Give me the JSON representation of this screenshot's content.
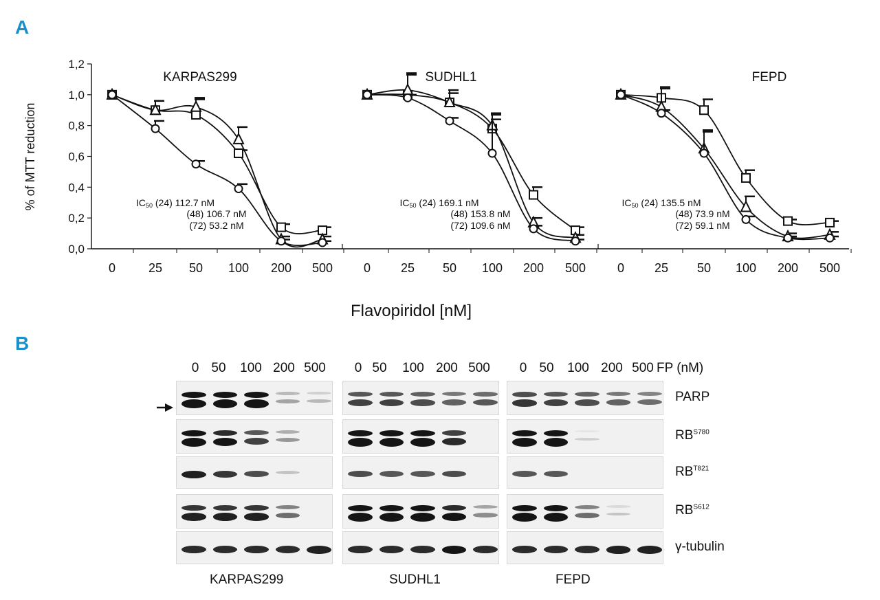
{
  "panel_labels": {
    "a": "A",
    "b": "B"
  },
  "colors": {
    "panel_letter": "#1b8fc9",
    "ink": "#111111",
    "blot_bg": "#f1f1f1",
    "band": "#151515"
  },
  "chart_data": [
    {
      "type": "line",
      "title": "KARPAS299",
      "categories": [
        "0",
        "25",
        "50",
        "100",
        "200",
        "500"
      ],
      "ylabel": "% of MTT reduction",
      "xlabel": "Flavopiridol [nM]",
      "yticks": [
        "0,0",
        "0,2",
        "0,4",
        "0,6",
        "0,8",
        "1,0",
        "1,2"
      ],
      "ylim": [
        0,
        1.2
      ],
      "series": [
        {
          "marker": "square",
          "values": [
            1.0,
            0.9,
            0.87,
            0.62,
            0.14,
            0.12
          ],
          "errors": [
            0,
            0.06,
            0.1,
            0.02,
            0.02,
            0.02
          ]
        },
        {
          "marker": "triangle",
          "values": [
            1.0,
            0.9,
            0.92,
            0.71,
            0.06,
            0.06
          ],
          "errors": [
            0,
            0.06,
            0.06,
            0.08,
            0.02,
            0.02
          ]
        },
        {
          "marker": "circle",
          "values": [
            1.0,
            0.78,
            0.55,
            0.39,
            0.05,
            0.04
          ],
          "errors": [
            0,
            0.05,
            0.02,
            0.03,
            0.01,
            0.01
          ]
        }
      ],
      "annotation": [
        "IC50 (24) 112.7 nM",
        "(48) 106.7 nM",
        "(72) 53.2 nM"
      ]
    },
    {
      "type": "line",
      "title": "SUDHL1",
      "categories": [
        "0",
        "25",
        "50",
        "100",
        "200",
        "500"
      ],
      "ylim": [
        0,
        1.2
      ],
      "series": [
        {
          "marker": "square",
          "values": [
            1.0,
            1.0,
            0.95,
            0.78,
            0.35,
            0.12
          ],
          "errors": [
            0,
            0.14,
            0.08,
            0.1,
            0.05,
            0.02
          ]
        },
        {
          "marker": "triangle",
          "values": [
            1.0,
            1.03,
            0.95,
            0.8,
            0.17,
            0.07
          ],
          "errors": [
            0,
            0.1,
            0.06,
            0.07,
            0.03,
            0.02
          ]
        },
        {
          "marker": "circle",
          "values": [
            1.0,
            0.98,
            0.83,
            0.62,
            0.13,
            0.05
          ],
          "errors": [
            0,
            0.02,
            0.02,
            0.22,
            0.02,
            0.01
          ]
        }
      ],
      "annotation": [
        "IC50 (24) 169.1 nM",
        "(48) 153.8 nM",
        "(72) 109.6 nM"
      ]
    },
    {
      "type": "line",
      "title": "FEPD",
      "categories": [
        "0",
        "25",
        "50",
        "100",
        "200",
        "500"
      ],
      "ylim": [
        0,
        1.2
      ],
      "series": [
        {
          "marker": "square",
          "values": [
            1.0,
            0.98,
            0.9,
            0.46,
            0.18,
            0.17
          ],
          "errors": [
            0,
            0.07,
            0.07,
            0.05,
            0.01,
            0.01
          ]
        },
        {
          "marker": "triangle",
          "values": [
            1.0,
            0.92,
            0.65,
            0.27,
            0.08,
            0.09
          ],
          "errors": [
            0,
            0.12,
            0.12,
            0.07,
            0.02,
            0.02
          ]
        },
        {
          "marker": "circle",
          "values": [
            1.0,
            0.88,
            0.62,
            0.19,
            0.07,
            0.07
          ],
          "errors": [
            0,
            0.02,
            0.14,
            0.02,
            0.01,
            0.01
          ]
        }
      ],
      "annotation": [
        "IC50 (24) 135.5 nM",
        "(48) 73.9 nM",
        "(72) 59.1 nM"
      ]
    }
  ],
  "western_blot": {
    "concentrations": [
      "0",
      "50",
      "100",
      "200",
      "500"
    ],
    "concentration_unit": "FP (nM)",
    "rows": [
      {
        "name": "PARP",
        "sup": ""
      },
      {
        "name": "RB",
        "sup": "S780"
      },
      {
        "name": "RB",
        "sup": "T821"
      },
      {
        "name": "RB",
        "sup": "S612"
      },
      {
        "name": "γ-tubulin",
        "sup": ""
      }
    ],
    "cell_lines": [
      "KARPAS299",
      "SUDHL1",
      "FEPD"
    ],
    "band_intensity": [
      [
        [
          1.0,
          1.0,
          1.0,
          0.25,
          0.15
        ],
        [
          0.7,
          0.7,
          0.65,
          0.55,
          0.6
        ],
        [
          0.75,
          0.7,
          0.65,
          0.55,
          0.5
        ]
      ],
      [
        [
          1.0,
          0.9,
          0.7,
          0.3,
          0.0
        ],
        [
          1.0,
          1.0,
          1.0,
          0.8,
          0.0
        ],
        [
          1.0,
          1.0,
          0.05,
          0.0,
          0.0
        ]
      ],
      [
        [
          0.95,
          0.85,
          0.75,
          0.2,
          0.0
        ],
        [
          0.75,
          0.7,
          0.7,
          0.75,
          0.0
        ],
        [
          0.7,
          0.7,
          0.0,
          0.0,
          0.0
        ]
      ],
      [
        [
          0.85,
          0.85,
          0.85,
          0.5,
          0.0
        ],
        [
          1.0,
          1.0,
          1.0,
          0.9,
          0.35
        ],
        [
          1.0,
          1.0,
          0.5,
          0.1,
          0.0
        ]
      ],
      [
        [
          0.9,
          0.9,
          0.9,
          0.9,
          0.95
        ],
        [
          0.9,
          0.9,
          0.9,
          1.0,
          0.9
        ],
        [
          0.9,
          0.9,
          0.9,
          0.95,
          0.95
        ]
      ]
    ]
  }
}
